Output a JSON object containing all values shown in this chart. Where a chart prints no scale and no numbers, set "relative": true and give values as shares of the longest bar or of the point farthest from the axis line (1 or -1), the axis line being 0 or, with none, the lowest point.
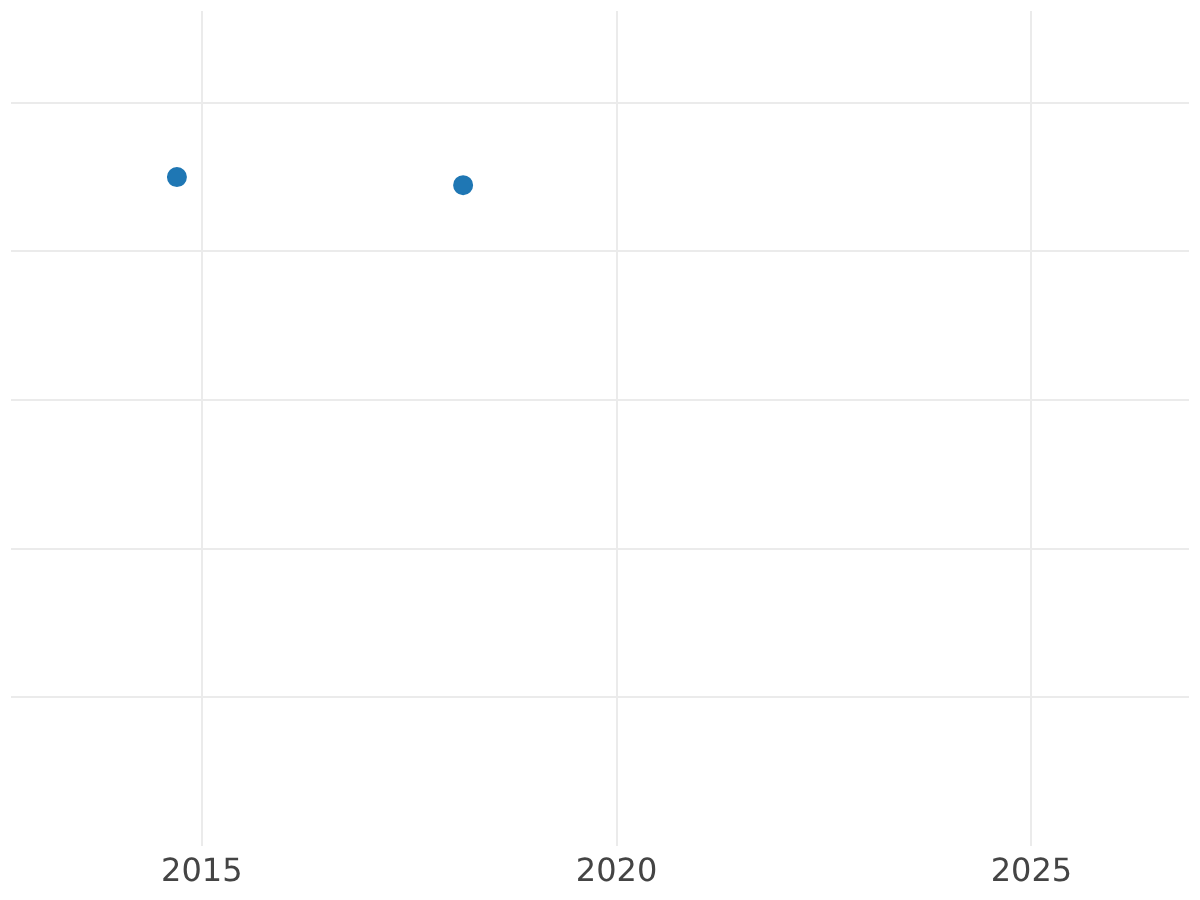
{
  "chart_data": {
    "type": "scatter",
    "relative": true,
    "x": [
      2014.7,
      2018.15
    ],
    "series": [
      {
        "color": "#1f77b4",
        "values": [
          1,
          0.988
        ]
      }
    ],
    "xlim": [
      2012.7,
      2026.9
    ],
    "xticks": [
      2015,
      2020,
      2025
    ],
    "grid": true,
    "legend": false,
    "marker": "circle",
    "tick_labels": "x"
  }
}
